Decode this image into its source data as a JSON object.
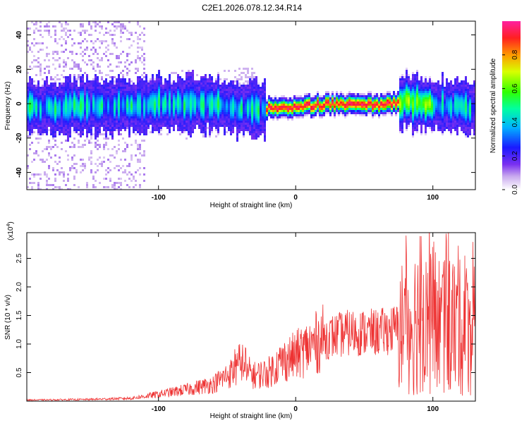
{
  "title": "C2E1.2026.078.12.34.R14",
  "colors": {
    "snr_line": "#ee3333",
    "frame": "#000000",
    "background": "#ffffff"
  },
  "chart_data": [
    {
      "type": "heatmap",
      "name": "spectrogram",
      "xlabel": "Height of straight line (km)",
      "ylabel": "Frequency (Hz)",
      "xlim": [
        -196,
        131
      ],
      "ylim": [
        -50,
        48
      ],
      "xticks": [
        -100,
        0,
        100
      ],
      "yticks": [
        -40,
        -20,
        0,
        20,
        40
      ],
      "ridge": {
        "description_center_hz": [
          {
            "x": -196,
            "y": -2
          },
          {
            "x": -150,
            "y": -1
          },
          {
            "x": -100,
            "y": 0
          },
          {
            "x": -60,
            "y": 1
          },
          {
            "x": -40,
            "y": -3
          },
          {
            "x": -20,
            "y": -2
          },
          {
            "x": 0,
            "y": -1
          },
          {
            "x": 20,
            "y": 0
          },
          {
            "x": 60,
            "y": 0
          },
          {
            "x": 80,
            "y": 2
          },
          {
            "x": 100,
            "y": 0
          },
          {
            "x": 131,
            "y": -2
          }
        ]
      },
      "colorbar": {
        "label": "Normalized spectral amplitude",
        "range": [
          0,
          1
        ],
        "ticks": [
          "0.0",
          "0.2",
          "0.4",
          "0.6",
          "0.8"
        ]
      }
    },
    {
      "type": "line",
      "name": "snr",
      "xlabel": "Height of straight line (km)",
      "ylabel": "SNR (10 * v/v)",
      "scale_label": "(x10",
      "scale_exp": "4",
      "scale_close": ")",
      "xlim": [
        -196,
        131
      ],
      "ylim": [
        0,
        2.95
      ],
      "xticks": [
        -100,
        0,
        100
      ],
      "yticks": [
        "0.5",
        "1.0",
        "1.5",
        "2.0",
        "2.5"
      ],
      "envelope": [
        {
          "x": -196,
          "y": 0.02
        },
        {
          "x": -150,
          "y": 0.03
        },
        {
          "x": -120,
          "y": 0.05
        },
        {
          "x": -100,
          "y": 0.12
        },
        {
          "x": -80,
          "y": 0.2
        },
        {
          "x": -60,
          "y": 0.3
        },
        {
          "x": -50,
          "y": 0.45
        },
        {
          "x": -40,
          "y": 0.6
        },
        {
          "x": -30,
          "y": 0.45
        },
        {
          "x": -20,
          "y": 0.5
        },
        {
          "x": -10,
          "y": 0.7
        },
        {
          "x": 0,
          "y": 0.8
        },
        {
          "x": 10,
          "y": 0.95
        },
        {
          "x": 20,
          "y": 1.1
        },
        {
          "x": 40,
          "y": 1.2
        },
        {
          "x": 60,
          "y": 1.2
        },
        {
          "x": 80,
          "y": 1.3
        },
        {
          "x": 90,
          "y": 1.5
        },
        {
          "x": 100,
          "y": 1.4
        },
        {
          "x": 110,
          "y": 1.3
        },
        {
          "x": 131,
          "y": 1.25
        }
      ]
    }
  ]
}
